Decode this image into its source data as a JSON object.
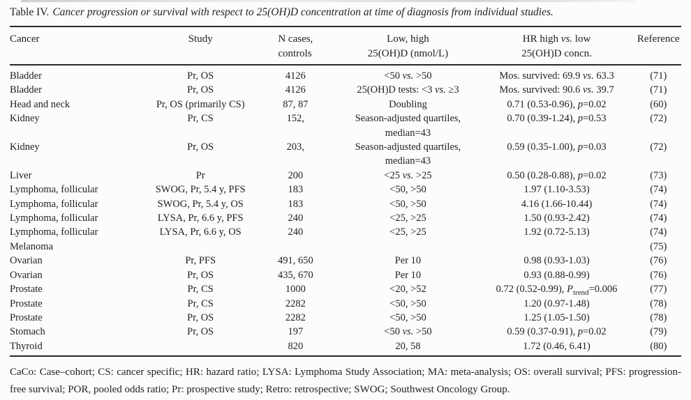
{
  "page": {
    "background_color": "#fcfcfa",
    "text_color": "#1f1f1f",
    "rule_color": "#2a2a2a"
  },
  "table": {
    "title_prefix": "Table IV.",
    "title_text": "Cancer progression or survival with respect to 25(OH)D concentration at time of diagnosis from individual studies.",
    "columns": [
      {
        "id": "cancer",
        "lines": [
          "Cancer"
        ],
        "align": "left"
      },
      {
        "id": "study",
        "lines": [
          "Study"
        ],
        "align": "center"
      },
      {
        "id": "n-cases-controls",
        "lines": [
          "N cases,",
          "controls"
        ],
        "align": "center",
        "header_block_left": true
      },
      {
        "id": "low-high-25ohd",
        "lines": [
          "Low, high",
          "25(OH)D (nmol/L)"
        ],
        "align": "center"
      },
      {
        "id": "hr-high-vs-low",
        "lines": [
          "HR high *vs.* low",
          "25(OH)D concn."
        ],
        "align": "center"
      },
      {
        "id": "reference",
        "lines": [
          "Reference"
        ],
        "align": "center"
      }
    ],
    "rows": [
      {
        "cells": [
          "Bladder",
          "Pr, OS",
          "4126",
          "<50 *vs.* >50",
          "Mos. survived: 69.9 *vs.* 63.3",
          "(71)"
        ]
      },
      {
        "cells": [
          "Bladder",
          "Pr, OS",
          "4126",
          "25(OH)D tests: <3 *vs.* ≥3",
          "Mos. survived: 90.6 *vs.* 39.7",
          "(71)"
        ]
      },
      {
        "cells": [
          "Head and neck",
          "Pr, OS (primarily CS)",
          "87, 87",
          "Doubling",
          "0.71 (0.53-0.96), *p*=0.02",
          "(60)"
        ]
      },
      {
        "cells": [
          "Kidney",
          "Pr, CS",
          "152,",
          "Season-adjusted quartiles,\nmedian=43",
          "0.70 (0.39-1.24), *p*=0.53",
          "(72)"
        ]
      },
      {
        "cells": [
          "Kidney",
          "Pr, OS",
          "203,",
          "Season-adjusted quartiles,\nmedian=43",
          "0.59 (0.35-1.00), *p*=0.03",
          "(72)"
        ]
      },
      {
        "cells": [
          "Liver",
          "Pr",
          "200",
          "<25 *vs.* >25",
          "0.50 (0.28-0.88), *p*=0.02",
          "(73)"
        ]
      },
      {
        "cells": [
          "Lymphoma, follicular",
          "SWOG, Pr, 5.4 y, PFS",
          "183",
          "<50, >50",
          "1.97 (1.10-3.53)",
          "(74)"
        ]
      },
      {
        "cells": [
          "Lymphoma, follicular",
          "SWOG, Pr, 5.4 y, OS",
          "183",
          "<50, >50",
          "4.16 (1.66-10.44)",
          "(74)"
        ]
      },
      {
        "cells": [
          "Lymphoma, follicular",
          "LYSA, Pr, 6.6 y, PFS",
          "240",
          "<25, >25",
          "1.50 (0.93-2.42)",
          "(74)"
        ]
      },
      {
        "cells": [
          "Lymphoma, follicular",
          "LYSA, Pr, 6.6 y, OS",
          "240",
          "<25, >25",
          "1.92 (0.72-5.13)",
          "(74)"
        ]
      },
      {
        "cells": [
          "Melanoma",
          "",
          "",
          "",
          "",
          "(75)"
        ]
      },
      {
        "cells": [
          "Ovarian",
          "Pr, PFS",
          "491, 650",
          "Per 10",
          "0.98 (0.93-1.03)",
          "(76)"
        ]
      },
      {
        "cells": [
          "Ovarian",
          "Pr, OS",
          "435, 670",
          "Per 10",
          "0.93 (0.88-0.99)",
          "(76)"
        ]
      },
      {
        "cells": [
          "Prostate",
          "Pr, CS",
          "1000",
          "<20, >52",
          "0.72 (0.52-0.99), *P*~trend~=0.006",
          "(77)"
        ]
      },
      {
        "cells": [
          "Prostate",
          "Pr, CS",
          "2282",
          "<50, >50",
          "1.20 (0.97-1.48)",
          "(78)"
        ]
      },
      {
        "cells": [
          "Prostate",
          "Pr, OS",
          "2282",
          "<50, >50",
          "1.25 (1.05-1.50)",
          "(78)"
        ]
      },
      {
        "cells": [
          "Stomach",
          "Pr, OS",
          "197",
          "<50 *vs.* >50",
          "0.59 (0.37-0.91), *p*=0.02",
          "(79)"
        ]
      },
      {
        "cells": [
          "Thyroid",
          "",
          "820",
          "20, 58",
          "1.72 (0.46, 6.41)",
          "(80)"
        ]
      }
    ]
  },
  "footnote": {
    "text": "CaCo: Case–cohort; CS: cancer specific; HR: hazard ratio; LYSA: Lymphoma Study Association; MA: meta-analysis; OS: overall survival; PFS: progression-free survival; POR, pooled odds ratio; Pr: prospective study; Retro: retrospective; SWOG; Southwest Oncology Group."
  }
}
